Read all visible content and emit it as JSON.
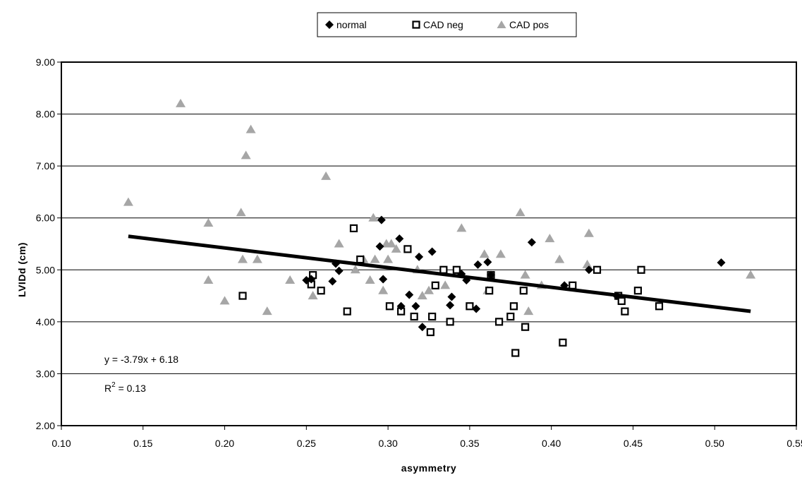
{
  "chart_data": {
    "type": "scatter",
    "xlabel": "asymmetry",
    "ylabel": "LVIDd (cm)",
    "xlim": [
      0.1,
      0.55
    ],
    "ylim": [
      2.0,
      9.0
    ],
    "x_ticks": [
      "0.10",
      "0.15",
      "0.20",
      "0.25",
      "0.30",
      "0.35",
      "0.40",
      "0.45",
      "0.50",
      "0.55"
    ],
    "y_ticks": [
      "2.00",
      "3.00",
      "4.00",
      "5.00",
      "6.00",
      "7.00",
      "8.00",
      "9.00"
    ],
    "grid": "horizontal",
    "legend_position": "top-center",
    "series": [
      {
        "name": "normal",
        "marker": "diamond",
        "color": "#000000",
        "points": [
          [
            0.25,
            4.8
          ],
          [
            0.253,
            4.82
          ],
          [
            0.266,
            4.78
          ],
          [
            0.268,
            5.12
          ],
          [
            0.27,
            4.98
          ],
          [
            0.295,
            5.45
          ],
          [
            0.296,
            5.96
          ],
          [
            0.297,
            4.82
          ],
          [
            0.307,
            5.6
          ],
          [
            0.308,
            4.3
          ],
          [
            0.313,
            4.52
          ],
          [
            0.317,
            4.3
          ],
          [
            0.319,
            5.25
          ],
          [
            0.321,
            3.9
          ],
          [
            0.327,
            5.35
          ],
          [
            0.338,
            4.32
          ],
          [
            0.339,
            4.48
          ],
          [
            0.345,
            4.92
          ],
          [
            0.348,
            4.8
          ],
          [
            0.354,
            4.25
          ],
          [
            0.355,
            5.1
          ],
          [
            0.361,
            5.15
          ],
          [
            0.363,
            4.9
          ],
          [
            0.388,
            5.53
          ],
          [
            0.408,
            4.7
          ],
          [
            0.423,
            5.0
          ],
          [
            0.44,
            4.5
          ],
          [
            0.504,
            5.14
          ]
        ]
      },
      {
        "name": "CAD neg",
        "marker": "open-square",
        "color": "#000000",
        "points": [
          [
            0.211,
            4.5
          ],
          [
            0.253,
            4.72
          ],
          [
            0.254,
            4.9
          ],
          [
            0.259,
            4.6
          ],
          [
            0.275,
            4.2
          ],
          [
            0.279,
            5.8
          ],
          [
            0.283,
            5.2
          ],
          [
            0.301,
            4.3
          ],
          [
            0.308,
            4.2
          ],
          [
            0.312,
            5.4
          ],
          [
            0.316,
            4.1
          ],
          [
            0.326,
            3.8
          ],
          [
            0.327,
            4.1
          ],
          [
            0.329,
            4.7
          ],
          [
            0.334,
            5.0
          ],
          [
            0.338,
            4.0
          ],
          [
            0.342,
            5.0
          ],
          [
            0.35,
            4.3
          ],
          [
            0.362,
            4.6
          ],
          [
            0.363,
            4.9
          ],
          [
            0.368,
            4.0
          ],
          [
            0.375,
            4.1
          ],
          [
            0.377,
            4.3
          ],
          [
            0.378,
            3.4
          ],
          [
            0.383,
            4.6
          ],
          [
            0.384,
            3.9
          ],
          [
            0.407,
            3.6
          ],
          [
            0.413,
            4.7
          ],
          [
            0.428,
            5.0
          ],
          [
            0.441,
            4.5
          ],
          [
            0.443,
            4.4
          ],
          [
            0.445,
            4.2
          ],
          [
            0.453,
            4.6
          ],
          [
            0.455,
            5.0
          ],
          [
            0.466,
            4.3
          ]
        ]
      },
      {
        "name": "CAD pos",
        "marker": "triangle",
        "color": "#a6a6a6",
        "points": [
          [
            0.141,
            6.3
          ],
          [
            0.173,
            8.2
          ],
          [
            0.19,
            5.9
          ],
          [
            0.19,
            4.8
          ],
          [
            0.2,
            4.4
          ],
          [
            0.21,
            6.1
          ],
          [
            0.211,
            5.2
          ],
          [
            0.213,
            7.2
          ],
          [
            0.216,
            7.7
          ],
          [
            0.22,
            5.2
          ],
          [
            0.226,
            4.2
          ],
          [
            0.24,
            4.8
          ],
          [
            0.254,
            4.5
          ],
          [
            0.262,
            6.8
          ],
          [
            0.27,
            5.5
          ],
          [
            0.28,
            5.0
          ],
          [
            0.285,
            5.2
          ],
          [
            0.289,
            4.8
          ],
          [
            0.291,
            6.0
          ],
          [
            0.292,
            5.2
          ],
          [
            0.297,
            4.6
          ],
          [
            0.299,
            5.5
          ],
          [
            0.3,
            5.2
          ],
          [
            0.302,
            5.5
          ],
          [
            0.305,
            5.4
          ],
          [
            0.318,
            5.0
          ],
          [
            0.321,
            4.5
          ],
          [
            0.325,
            4.6
          ],
          [
            0.335,
            4.7
          ],
          [
            0.345,
            5.8
          ],
          [
            0.359,
            5.3
          ],
          [
            0.361,
            4.6
          ],
          [
            0.369,
            5.3
          ],
          [
            0.381,
            6.1
          ],
          [
            0.384,
            4.9
          ],
          [
            0.386,
            4.2
          ],
          [
            0.394,
            4.7
          ],
          [
            0.399,
            5.6
          ],
          [
            0.405,
            5.2
          ],
          [
            0.422,
            5.1
          ],
          [
            0.423,
            5.7
          ],
          [
            0.522,
            4.9
          ]
        ]
      }
    ],
    "trendline": {
      "slope": -3.79,
      "intercept": 6.18,
      "x_range": [
        0.141,
        0.522
      ],
      "color": "#000000"
    },
    "annotations": {
      "equation": "y = -3.79x + 6.18",
      "r2_label": "R",
      "r2_sup": "2",
      "r2_value": " = 0.13"
    }
  }
}
